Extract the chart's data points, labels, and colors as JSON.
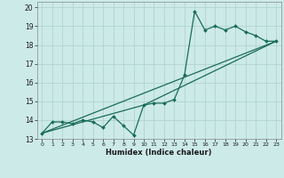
{
  "xlabel": "Humidex (Indice chaleur)",
  "bg_color": "#cceae8",
  "grid_color": "#b0d4d2",
  "line_color": "#1a6b5a",
  "xlim": [
    -0.5,
    23.5
  ],
  "ylim": [
    13,
    20.3
  ],
  "yticks": [
    13,
    14,
    15,
    16,
    17,
    18,
    19,
    20
  ],
  "xticks": [
    0,
    1,
    2,
    3,
    4,
    5,
    6,
    7,
    8,
    9,
    10,
    11,
    12,
    13,
    14,
    15,
    16,
    17,
    18,
    19,
    20,
    21,
    22,
    23
  ],
  "line1_x": [
    0,
    1,
    2,
    3,
    4,
    5,
    6,
    7,
    8,
    9,
    10,
    11,
    12,
    13,
    14,
    15,
    16,
    17,
    18,
    19,
    20,
    21,
    22,
    23
  ],
  "line1_y": [
    13.3,
    13.9,
    13.9,
    13.8,
    14.0,
    13.9,
    13.6,
    14.2,
    13.7,
    13.2,
    14.8,
    14.9,
    14.9,
    15.1,
    16.4,
    19.8,
    18.8,
    19.0,
    18.8,
    19.0,
    18.7,
    18.5,
    18.2,
    18.2
  ],
  "line2_x": [
    0,
    10,
    23
  ],
  "line2_y": [
    13.3,
    14.8,
    18.2
  ],
  "line3_x": [
    0,
    23
  ],
  "line3_y": [
    13.3,
    18.2
  ]
}
